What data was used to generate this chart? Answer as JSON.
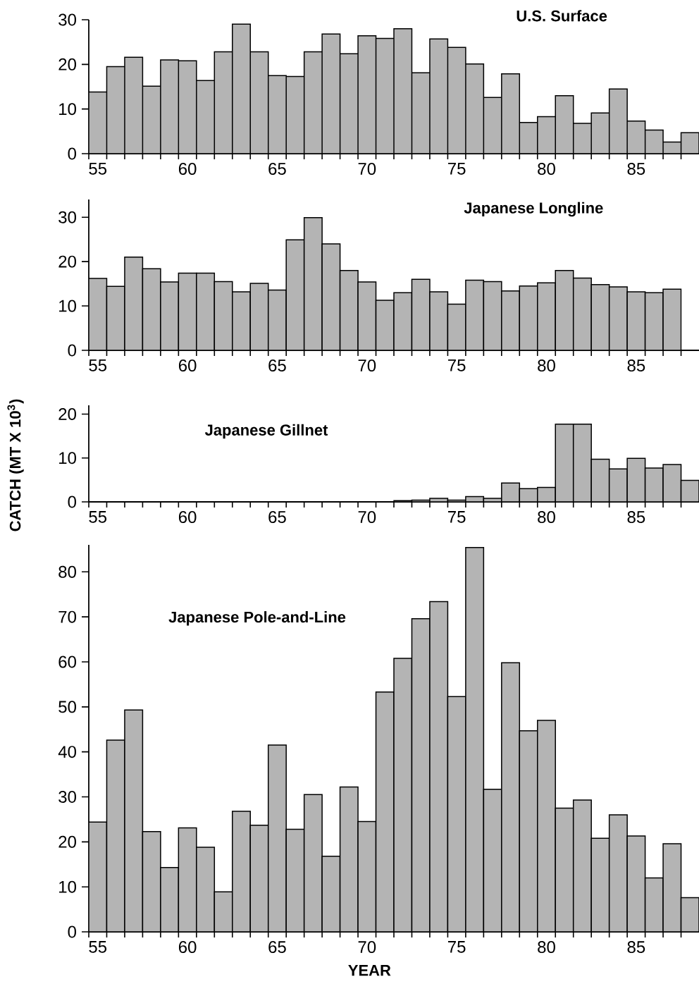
{
  "chart_data": [
    {
      "type": "bar",
      "title": "U.S. Surface",
      "color": "#b4b4b4",
      "x": [
        55,
        56,
        57,
        58,
        59,
        60,
        61,
        62,
        63,
        64,
        65,
        66,
        67,
        68,
        69,
        70,
        71,
        72,
        73,
        74,
        75,
        76,
        77,
        78,
        79,
        80,
        81,
        82,
        83,
        84,
        85,
        86,
        87,
        88
      ],
      "values": [
        13.8,
        19.5,
        21.6,
        15.1,
        21.0,
        20.8,
        16.4,
        22.8,
        29.0,
        22.8,
        17.5,
        17.3,
        22.8,
        26.8,
        22.4,
        26.4,
        25.8,
        28.0,
        18.1,
        25.7,
        23.8,
        20.1,
        12.6,
        17.9,
        7.0,
        8.3,
        13.0,
        6.8,
        9.1,
        14.5,
        7.3,
        5.3,
        2.6,
        4.7
      ],
      "xlim": [
        54.5,
        88.5
      ],
      "ylim": [
        0,
        30
      ],
      "yticks": [
        0,
        10,
        20,
        30
      ],
      "xticks": [
        {
          "value": 54.5,
          "label": null
        },
        55,
        {
          "value": 55.5,
          "label": null
        },
        {
          "value": 56.5,
          "label": null
        },
        {
          "value": 57.5,
          "label": null
        },
        {
          "value": 58.5,
          "label": null
        },
        {
          "value": 59.5,
          "label": null
        },
        60,
        {
          "value": 60.5,
          "label": null
        },
        {
          "value": 61.5,
          "label": null
        },
        {
          "value": 62.5,
          "label": null
        },
        {
          "value": 63.5,
          "label": null
        },
        {
          "value": 64.5,
          "label": null
        },
        65,
        {
          "value": 65.5,
          "label": null
        },
        {
          "value": 66.5,
          "label": null
        },
        {
          "value": 67.5,
          "label": null
        },
        {
          "value": 68.5,
          "label": null
        },
        {
          "value": 69.5,
          "label": null
        },
        70,
        {
          "value": 70.5,
          "label": null
        },
        {
          "value": 71.5,
          "label": null
        },
        {
          "value": 72.5,
          "label": null
        },
        {
          "value": 73.5,
          "label": null
        },
        {
          "value": 74.5,
          "label": null
        },
        75,
        {
          "value": 75.5,
          "label": null
        },
        {
          "value": 76.5,
          "label": null
        },
        {
          "value": 77.5,
          "label": null
        },
        {
          "value": 78.5,
          "label": null
        },
        {
          "value": 79.5,
          "label": null
        },
        80,
        {
          "value": 80.5,
          "label": null
        },
        {
          "value": 81.5,
          "label": null
        },
        {
          "value": 82.5,
          "label": null
        },
        {
          "value": 83.5,
          "label": null
        },
        {
          "value": 84.5,
          "label": null
        },
        85,
        {
          "value": 85.5,
          "label": null
        },
        {
          "value": 86.5,
          "label": null
        },
        {
          "value": 87.5,
          "label": null
        }
      ]
    },
    {
      "type": "bar",
      "title": "Japanese Longline",
      "color": "#b4b4b4",
      "x": [
        55,
        56,
        57,
        58,
        59,
        60,
        61,
        62,
        63,
        64,
        65,
        66,
        67,
        68,
        69,
        70,
        71,
        72,
        73,
        74,
        75,
        76,
        77,
        78,
        79,
        80,
        81,
        82,
        83,
        84,
        85,
        86,
        87
      ],
      "values": [
        16.2,
        14.4,
        21.0,
        18.4,
        15.4,
        17.4,
        17.4,
        15.5,
        13.2,
        15.1,
        13.6,
        24.9,
        29.9,
        24.0,
        18.0,
        15.4,
        11.3,
        13.0,
        16.0,
        13.2,
        10.4,
        15.8,
        15.5,
        13.4,
        14.5,
        15.2,
        18.0,
        16.3,
        14.8,
        14.3,
        13.2,
        13.0,
        13.8
      ],
      "xlim": [
        54.5,
        88.5
      ],
      "ylim": [
        0,
        34
      ],
      "yticks": [
        0,
        10,
        20,
        30
      ],
      "xticks": [
        {
          "value": 54.5,
          "label": null
        },
        55,
        {
          "value": 55.5,
          "label": null
        },
        {
          "value": 56.5,
          "label": null
        },
        {
          "value": 57.5,
          "label": null
        },
        {
          "value": 58.5,
          "label": null
        },
        {
          "value": 59.5,
          "label": null
        },
        60,
        {
          "value": 60.5,
          "label": null
        },
        {
          "value": 61.5,
          "label": null
        },
        {
          "value": 62.5,
          "label": null
        },
        {
          "value": 63.5,
          "label": null
        },
        {
          "value": 64.5,
          "label": null
        },
        65,
        {
          "value": 65.5,
          "label": null
        },
        {
          "value": 66.5,
          "label": null
        },
        {
          "value": 67.5,
          "label": null
        },
        {
          "value": 68.5,
          "label": null
        },
        {
          "value": 69.5,
          "label": null
        },
        70,
        {
          "value": 70.5,
          "label": null
        },
        {
          "value": 71.5,
          "label": null
        },
        {
          "value": 72.5,
          "label": null
        },
        {
          "value": 73.5,
          "label": null
        },
        {
          "value": 74.5,
          "label": null
        },
        75,
        {
          "value": 75.5,
          "label": null
        },
        {
          "value": 76.5,
          "label": null
        },
        {
          "value": 77.5,
          "label": null
        },
        {
          "value": 78.5,
          "label": null
        },
        {
          "value": 79.5,
          "label": null
        },
        80,
        {
          "value": 80.5,
          "label": null
        },
        {
          "value": 81.5,
          "label": null
        },
        {
          "value": 82.5,
          "label": null
        },
        {
          "value": 83.5,
          "label": null
        },
        {
          "value": 84.5,
          "label": null
        },
        85,
        {
          "value": 85.5,
          "label": null
        },
        {
          "value": 86.5,
          "label": null
        },
        {
          "value": 87.5,
          "label": null
        }
      ]
    },
    {
      "type": "bar",
      "title": "Japanese Gillnet",
      "ylabel": "CATCH (MT X 10$^{3}$)",
      "color": "#b4b4b4",
      "x": [
        55,
        56,
        57,
        58,
        59,
        60,
        61,
        62,
        63,
        64,
        65,
        66,
        67,
        68,
        69,
        70,
        71,
        72,
        73,
        74,
        75,
        76,
        77,
        78,
        79,
        80,
        81,
        82,
        83,
        84,
        85,
        86,
        87,
        88
      ],
      "values": [
        0,
        0,
        0,
        0,
        0,
        0,
        0,
        0,
        0,
        0,
        0,
        0,
        0,
        0,
        0,
        0,
        0,
        0.3,
        0.4,
        0.8,
        0.4,
        1.2,
        0.8,
        4.3,
        3.0,
        3.3,
        17.7,
        17.7,
        9.7,
        7.5,
        9.9,
        7.7,
        8.5,
        4.9
      ],
      "xlim": [
        54.5,
        88.5
      ],
      "ylim": [
        0,
        22
      ],
      "yticks": [
        0,
        10,
        20
      ],
      "xticks": [
        {
          "value": 54.5,
          "label": null
        },
        55,
        {
          "value": 55.5,
          "label": null
        },
        {
          "value": 56.5,
          "label": null
        },
        {
          "value": 57.5,
          "label": null
        },
        {
          "value": 58.5,
          "label": null
        },
        {
          "value": 59.5,
          "label": null
        },
        60,
        {
          "value": 60.5,
          "label": null
        },
        {
          "value": 61.5,
          "label": null
        },
        {
          "value": 62.5,
          "label": null
        },
        {
          "value": 63.5,
          "label": null
        },
        {
          "value": 64.5,
          "label": null
        },
        65,
        {
          "value": 65.5,
          "label": null
        },
        {
          "value": 66.5,
          "label": null
        },
        {
          "value": 67.5,
          "label": null
        },
        {
          "value": 68.5,
          "label": null
        },
        {
          "value": 69.5,
          "label": null
        },
        70,
        {
          "value": 70.5,
          "label": null
        },
        {
          "value": 71.5,
          "label": null
        },
        {
          "value": 72.5,
          "label": null
        },
        {
          "value": 73.5,
          "label": null
        },
        {
          "value": 74.5,
          "label": null
        },
        75,
        {
          "value": 75.5,
          "label": null
        },
        {
          "value": 76.5,
          "label": null
        },
        {
          "value": 77.5,
          "label": null
        },
        {
          "value": 78.5,
          "label": null
        },
        {
          "value": 79.5,
          "label": null
        },
        80,
        {
          "value": 80.5,
          "label": null
        },
        {
          "value": 81.5,
          "label": null
        },
        {
          "value": 82.5,
          "label": null
        },
        {
          "value": 83.5,
          "label": null
        },
        {
          "value": 84.5,
          "label": null
        },
        85,
        {
          "value": 85.5,
          "label": null
        },
        {
          "value": 86.5,
          "label": null
        },
        {
          "value": 87.5,
          "label": null
        }
      ]
    },
    {
      "type": "bar",
      "title": "Japanese Pole-and-Line",
      "xlabel": "YEAR",
      "color": "#b4b4b4",
      "x": [
        55,
        56,
        57,
        58,
        59,
        60,
        61,
        62,
        63,
        64,
        65,
        66,
        67,
        68,
        69,
        70,
        71,
        72,
        73,
        74,
        75,
        76,
        77,
        78,
        79,
        80,
        81,
        82,
        83,
        84,
        85,
        86,
        87,
        88
      ],
      "values": [
        24.4,
        42.6,
        49.3,
        22.3,
        14.3,
        23.1,
        18.8,
        8.9,
        26.8,
        23.7,
        41.5,
        22.8,
        30.5,
        16.8,
        32.2,
        24.5,
        53.3,
        60.8,
        69.6,
        73.4,
        52.3,
        85.4,
        31.7,
        59.8,
        44.7,
        47.0,
        27.5,
        29.3,
        20.8,
        26.0,
        21.3,
        12.0,
        19.6,
        7.6
      ],
      "xlim": [
        54.5,
        88.5
      ],
      "ylim": [
        0,
        86
      ],
      "yticks": [
        0,
        10,
        20,
        30,
        40,
        50,
        60,
        70,
        80
      ],
      "xticks": [
        {
          "value": 54.5,
          "label": null
        },
        55,
        {
          "value": 55.5,
          "label": null
        },
        {
          "value": 56.5,
          "label": null
        },
        {
          "value": 57.5,
          "label": null
        },
        {
          "value": 58.5,
          "label": null
        },
        {
          "value": 59.5,
          "label": null
        },
        60,
        {
          "value": 60.5,
          "label": null
        },
        {
          "value": 61.5,
          "label": null
        },
        {
          "value": 62.5,
          "label": null
        },
        {
          "value": 63.5,
          "label": null
        },
        {
          "value": 64.5,
          "label": null
        },
        65,
        {
          "value": 65.5,
          "label": null
        },
        {
          "value": 66.5,
          "label": null
        },
        {
          "value": 67.5,
          "label": null
        },
        {
          "value": 68.5,
          "label": null
        },
        {
          "value": 69.5,
          "label": null
        },
        70,
        {
          "value": 70.5,
          "label": null
        },
        {
          "value": 71.5,
          "label": null
        },
        {
          "value": 72.5,
          "label": null
        },
        {
          "value": 73.5,
          "label": null
        },
        {
          "value": 74.5,
          "label": null
        },
        75,
        {
          "value": 75.5,
          "label": null
        },
        {
          "value": 76.5,
          "label": null
        },
        {
          "value": 77.5,
          "label": null
        },
        {
          "value": 78.5,
          "label": null
        },
        {
          "value": 79.5,
          "label": null
        },
        80,
        {
          "value": 80.5,
          "label": null
        },
        {
          "value": 81.5,
          "label": null
        },
        {
          "value": 82.5,
          "label": null
        },
        {
          "value": 83.5,
          "label": null
        },
        {
          "value": 84.5,
          "label": null
        },
        85,
        {
          "value": 85.5,
          "label": null
        },
        {
          "value": 86.5,
          "label": null
        },
        {
          "value": 87.5,
          "label": null
        }
      ]
    }
  ]
}
